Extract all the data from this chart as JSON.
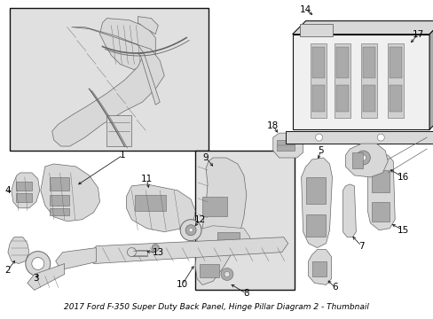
{
  "title": "2017 Ford F-350 Super Duty Back Panel, Hinge Pillar Diagram 2 - Thumbnail",
  "bg": "#ffffff",
  "lc": "#000000",
  "gray1": "#cccccc",
  "gray2": "#aaaaaa",
  "gray3": "#888888",
  "inset_bg": "#e8e8e8",
  "fig_w": 4.89,
  "fig_h": 3.6,
  "dpi": 100,
  "label_fs": 7.5
}
